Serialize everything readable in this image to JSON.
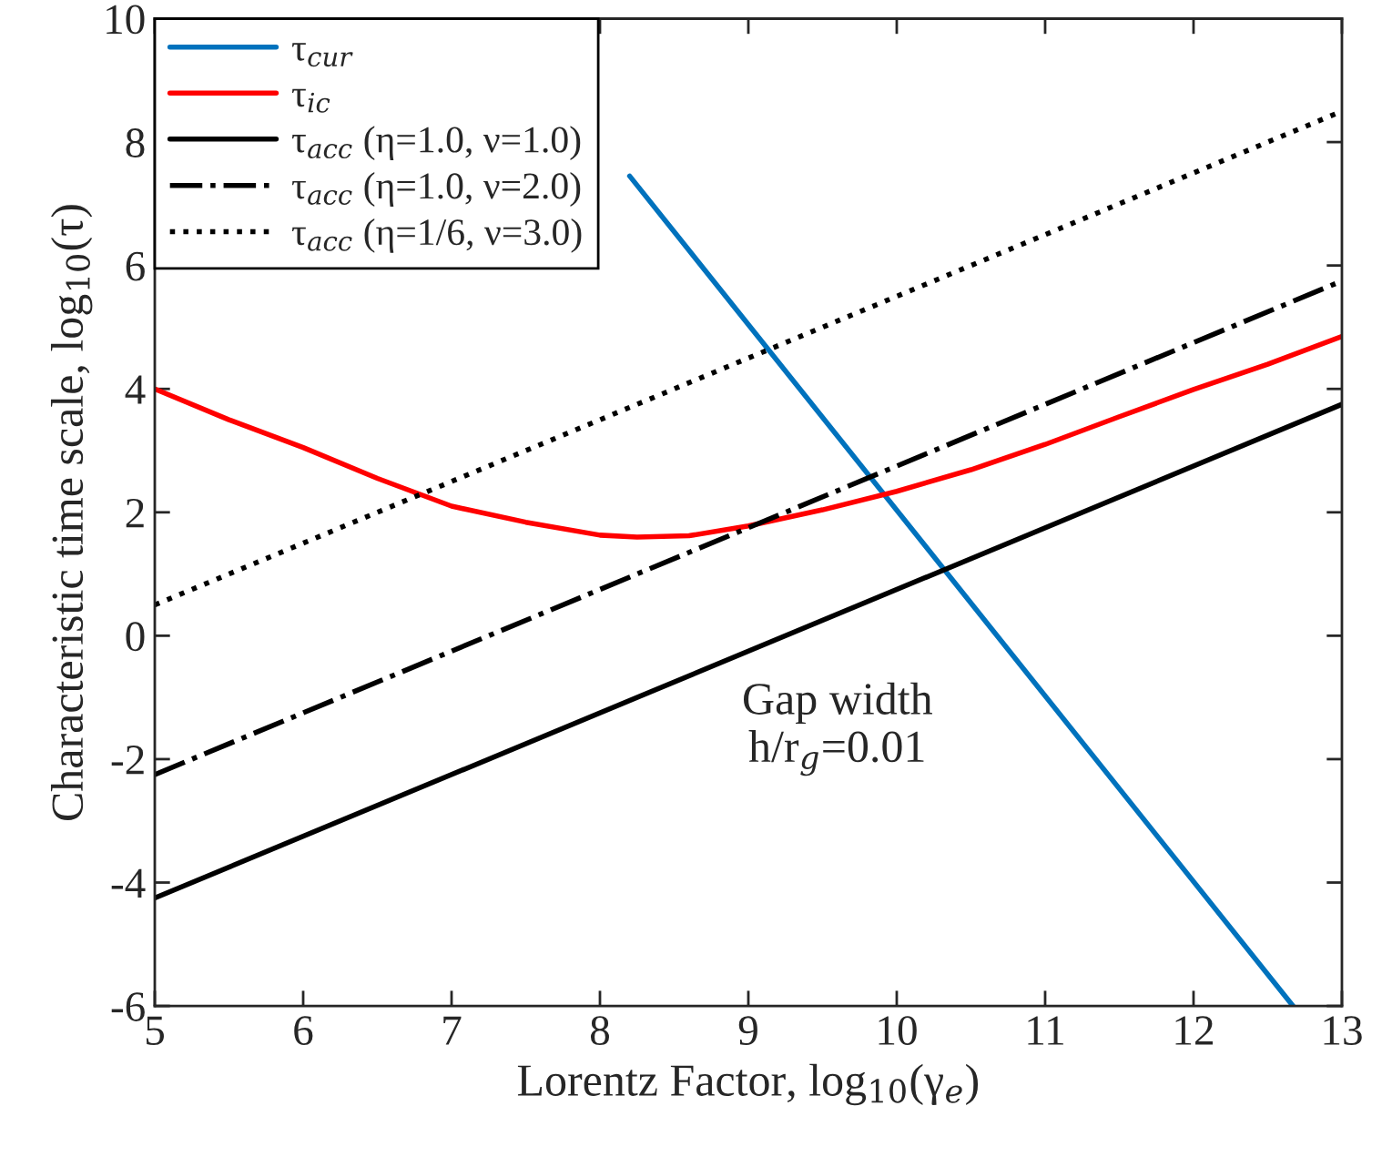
{
  "chart_data": {
    "type": "line",
    "xlabel": "Lorentz Factor, log$_{10}$(γ$_{e}$)",
    "ylabel": "Characteristic time scale, log$_{10}$(τ)",
    "annotations": [
      "Gap width\nh/r$_{g}$=0.01"
    ],
    "xlim": [
      5,
      13
    ],
    "ylim": [
      -6,
      10
    ],
    "xticks": [
      5,
      6,
      7,
      8,
      9,
      10,
      11,
      12,
      13
    ],
    "yticks": [
      {
        "value": -6,
        "label": "-6"
      },
      {
        "value": -4,
        "label": "-4"
      },
      {
        "value": -2,
        "label": "-2"
      },
      0,
      2,
      4,
      6,
      8,
      10
    ],
    "grid": false,
    "legend": "top left",
    "marker": "none",
    "series": [
      {
        "name": "τ$_{cur}$",
        "color": "#0072bd",
        "line_style": "solid",
        "x": [
          8.2,
          12.67
        ],
        "values": [
          7.45,
          -6.0
        ]
      },
      {
        "name": "τ$_{ic}$",
        "color": "#ff0000",
        "line_style": "solid",
        "x": [
          5,
          5.5,
          6,
          6.5,
          7,
          7.5,
          8,
          8.25,
          8.6,
          9,
          9.5,
          10,
          10.5,
          11,
          11.5,
          12,
          12.5,
          13
        ],
        "values": [
          4.0,
          3.5,
          3.05,
          2.55,
          2.1,
          1.84,
          1.63,
          1.6,
          1.62,
          1.78,
          2.04,
          2.34,
          2.69,
          3.1,
          3.55,
          3.99,
          4.4,
          4.85
        ]
      },
      {
        "name": "τ$_{acc}$ (η=1.0, ν=1.0)",
        "color": "#000000",
        "line_style": "solid",
        "x": [
          5,
          13
        ],
        "values": [
          -4.25,
          3.75
        ]
      },
      {
        "name": "τ$_{acc}$ (η=1.0, ν=2.0)",
        "color": "#000000",
        "line_style": "dashdot",
        "x": [
          5,
          13
        ],
        "values": [
          -2.25,
          5.75
        ]
      },
      {
        "name": "τ$_{acc}$ (η=1/6, ν=3.0)",
        "color": "#000000",
        "line_style": "dotted",
        "x": [
          5,
          13
        ],
        "values": [
          0.5,
          8.5
        ]
      }
    ]
  }
}
